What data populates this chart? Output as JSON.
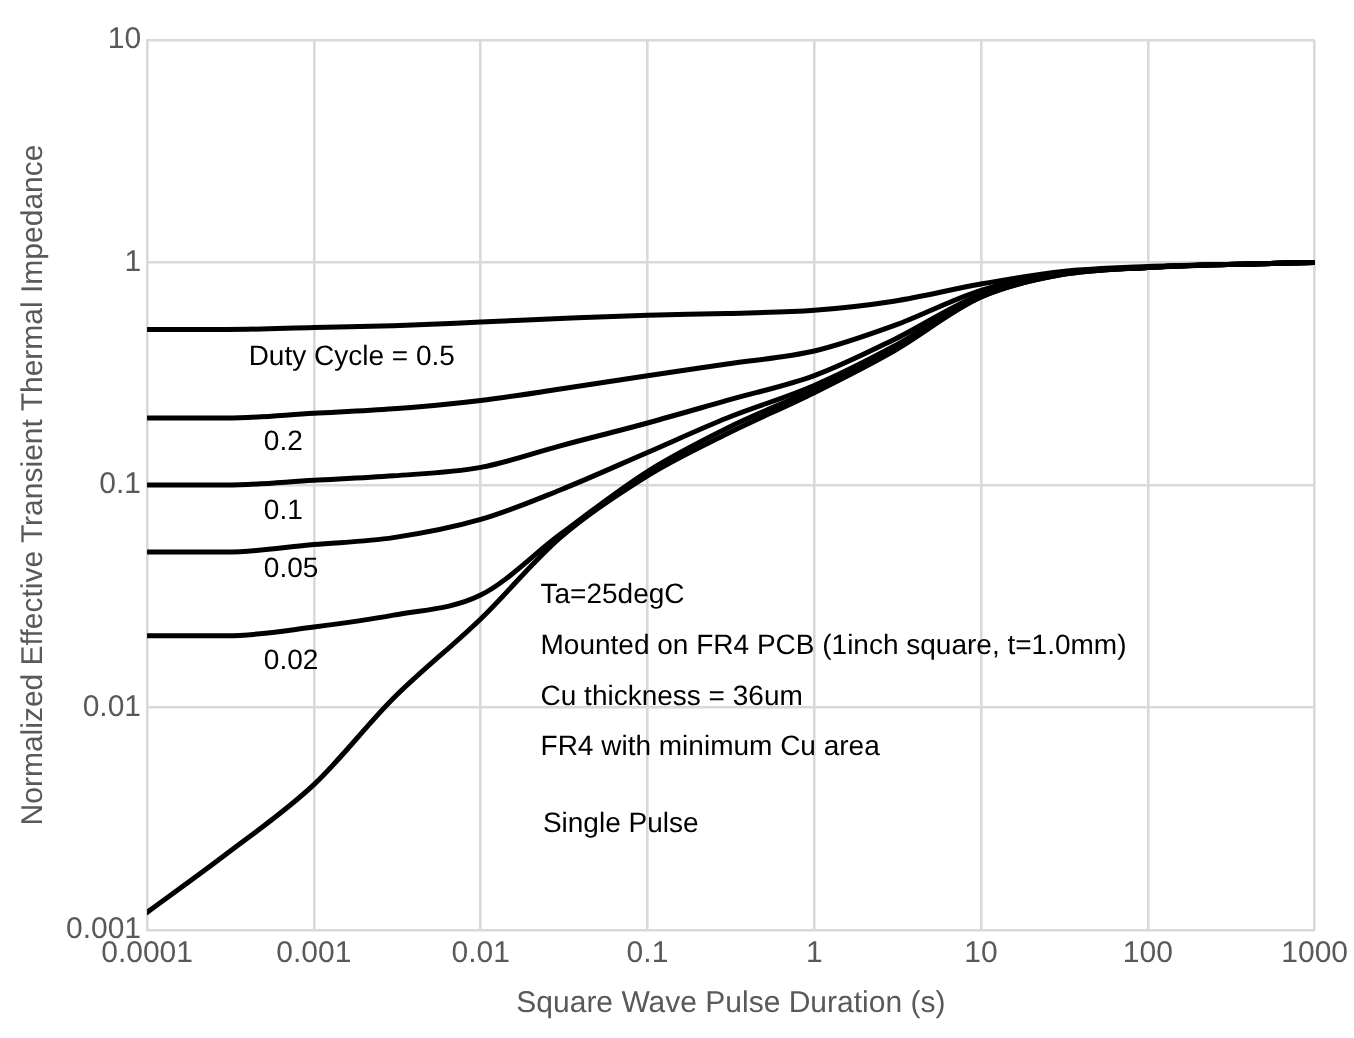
{
  "chart_data": {
    "type": "line",
    "xlabel": "Square Wave Pulse Duration (s)",
    "ylabel": "Normalized Effective Transient Thermal Impedance",
    "log": "xy",
    "grid": true,
    "legend": false,
    "marker": "none",
    "line_style": "solid",
    "x": [
      0.0001,
      0.0003,
      0.001,
      0.003,
      0.01,
      0.03,
      0.1,
      0.3,
      1,
      3,
      10,
      30,
      100,
      300,
      1000
    ],
    "series": [
      {
        "color": "#000000",
        "values": [
          0.5,
          0.5,
          0.51,
          0.52,
          0.54,
          0.56,
          0.58,
          0.59,
          0.61,
          0.67,
          0.8,
          0.91,
          0.96,
          0.98,
          1.0
        ]
      },
      {
        "color": "#000000",
        "values": [
          0.2,
          0.2,
          0.21,
          0.22,
          0.24,
          0.27,
          0.31,
          0.35,
          0.4,
          0.52,
          0.75,
          0.9,
          0.95,
          0.98,
          1.0
        ]
      },
      {
        "color": "#000000",
        "values": [
          0.1,
          0.1,
          0.105,
          0.11,
          0.12,
          0.15,
          0.19,
          0.24,
          0.31,
          0.45,
          0.72,
          0.89,
          0.95,
          0.98,
          1.0
        ]
      },
      {
        "color": "#000000",
        "values": [
          0.05,
          0.05,
          0.054,
          0.058,
          0.07,
          0.095,
          0.14,
          0.2,
          0.28,
          0.42,
          0.71,
          0.89,
          0.95,
          0.98,
          1.0
        ]
      },
      {
        "color": "#000000",
        "values": [
          0.021,
          0.021,
          0.023,
          0.026,
          0.032,
          0.06,
          0.115,
          0.18,
          0.27,
          0.41,
          0.7,
          0.88,
          0.95,
          0.98,
          1.0
        ]
      },
      {
        "color": "#000000",
        "values": [
          0.0012,
          0.0022,
          0.0045,
          0.011,
          0.025,
          0.058,
          0.11,
          0.17,
          0.26,
          0.4,
          0.7,
          0.88,
          0.95,
          0.98,
          1.0
        ]
      }
    ],
    "xlim": [
      0.0001,
      1000
    ],
    "xticks": [
      0.0001,
      0.001,
      0.01,
      0.1,
      1,
      10,
      100,
      1000
    ],
    "ylim": [
      0.001,
      10
    ],
    "yticks": [
      0.001,
      0.01,
      0.1,
      1,
      10
    ],
    "annotations": [
      "Duty Cycle = 0.5",
      "0.2",
      "0.1",
      "0.05",
      "0.02",
      "Single Pulse",
      "Ta=25degC",
      "Mounted on FR4 PCB (1inch square, t=1.0mm)",
      "Cu thickness = 36um",
      "FR4 with minimum Cu area"
    ]
  }
}
